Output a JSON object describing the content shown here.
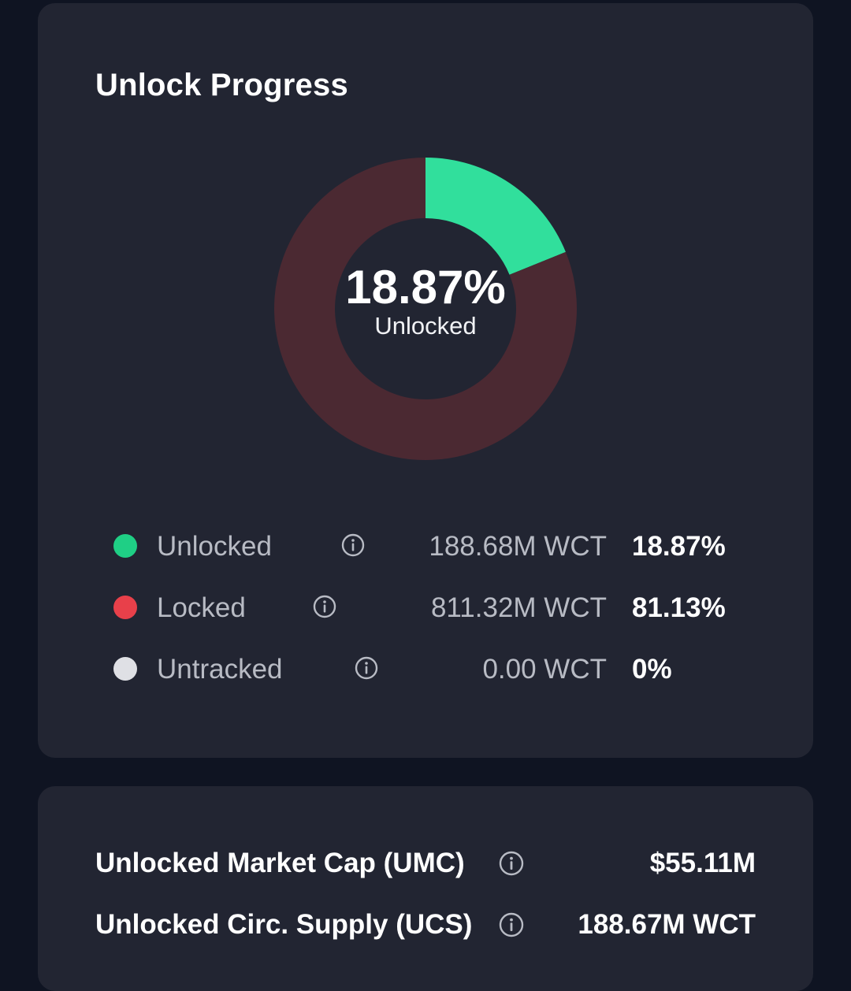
{
  "unlock_progress": {
    "title": "Unlock Progress",
    "center_percent": "18.87%",
    "center_label": "Unlocked",
    "colors": {
      "unlocked": "#31df9c",
      "locked": "#4b2932",
      "untracked": "#dfe0e5"
    },
    "legend": [
      {
        "name": "Unlocked",
        "amount": "188.68M WCT",
        "percent": "18.87%",
        "dot_color": "#1fcf85"
      },
      {
        "name": "Locked",
        "amount": "811.32M WCT",
        "percent": "81.13%",
        "dot_color": "#e8404a"
      },
      {
        "name": "Untracked",
        "amount": "0.00 WCT",
        "percent": "0%",
        "dot_color": "#dfe0e5"
      }
    ]
  },
  "chart_data": {
    "type": "pie",
    "categories": [
      "Unlocked",
      "Locked",
      "Untracked"
    ],
    "values": [
      18.87,
      81.13,
      0
    ]
  },
  "metrics": {
    "items": [
      {
        "label": "Unlocked Market Cap (UMC)",
        "value": "$55.11M"
      },
      {
        "label": "Unlocked Circ. Supply (UCS)",
        "value": "188.67M WCT"
      }
    ]
  }
}
